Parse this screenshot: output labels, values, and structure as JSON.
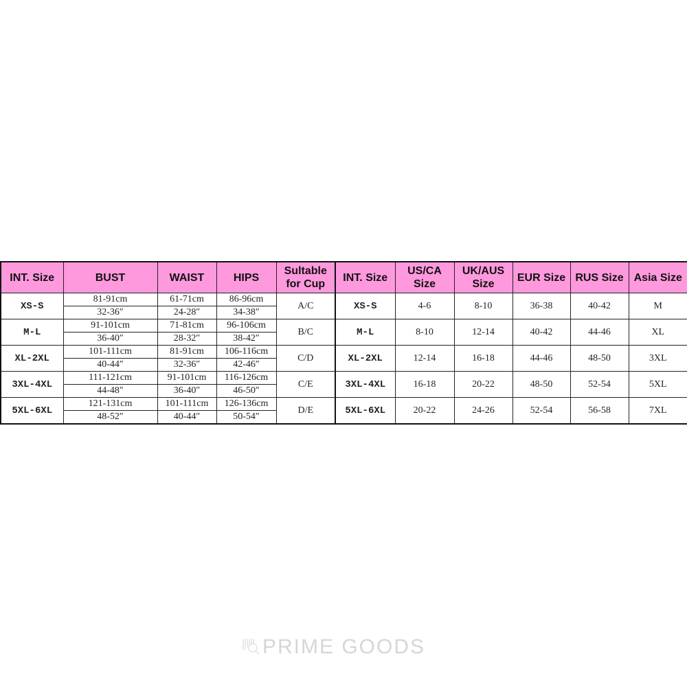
{
  "colors": {
    "header_bg": "#ff99dd"
  },
  "headers": [
    "INT. Size",
    "BUST",
    "WAIST",
    "HIPS",
    "Sultable for Cup",
    "INT. Size",
    "US/CA Size",
    "UK/AUS Size",
    "EUR Size",
    "RUS Size",
    "Asia Size"
  ],
  "rows": [
    {
      "size": "XS-S",
      "bust_cm": "81-91cm",
      "bust_in": "32-36″",
      "waist_cm": "61-71cm",
      "waist_in": "24-28″",
      "hips_cm": "86-96cm",
      "hips_in": "34-38″",
      "cup": "A/C",
      "size2": "XS-S",
      "us": "4-6",
      "uk": "8-10",
      "eur": "36-38",
      "rus": "40-42",
      "asia": "M"
    },
    {
      "size": "M-L",
      "bust_cm": "91-101cm",
      "bust_in": "36-40″",
      "waist_cm": "71-81cm",
      "waist_in": "28-32″",
      "hips_cm": "96-106cm",
      "hips_in": "38-42″",
      "cup": "B/C",
      "size2": "M-L",
      "us": "8-10",
      "uk": "12-14",
      "eur": "40-42",
      "rus": "44-46",
      "asia": "XL"
    },
    {
      "size": "XL-2XL",
      "bust_cm": "101-111cm",
      "bust_in": "40-44″",
      "waist_cm": "81-91cm",
      "waist_in": "32-36″",
      "hips_cm": "106-116cm",
      "hips_in": "42-46″",
      "cup": "C/D",
      "size2": "XL-2XL",
      "us": "12-14",
      "uk": "16-18",
      "eur": "44-46",
      "rus": "48-50",
      "asia": "3XL"
    },
    {
      "size": "3XL-4XL",
      "bust_cm": "111-121cm",
      "bust_in": "44-48″",
      "waist_cm": "91-101cm",
      "waist_in": "36-40″",
      "hips_cm": "116-126cm",
      "hips_in": "46-50″",
      "cup": "C/E",
      "size2": "3XL-4XL",
      "us": "16-18",
      "uk": "20-22",
      "eur": "48-50",
      "rus": "52-54",
      "asia": "5XL"
    },
    {
      "size": "5XL-6XL",
      "bust_cm": "121-131cm",
      "bust_in": "48-52″",
      "waist_cm": "101-111cm",
      "waist_in": "40-44″",
      "hips_cm": "126-136cm",
      "hips_in": "50-54″",
      "cup": "D/E",
      "size2": "5XL-6XL",
      "us": "20-22",
      "uk": "24-26",
      "eur": "52-54",
      "rus": "56-58",
      "asia": "7XL"
    }
  ],
  "watermark": "PRIME GOODS"
}
